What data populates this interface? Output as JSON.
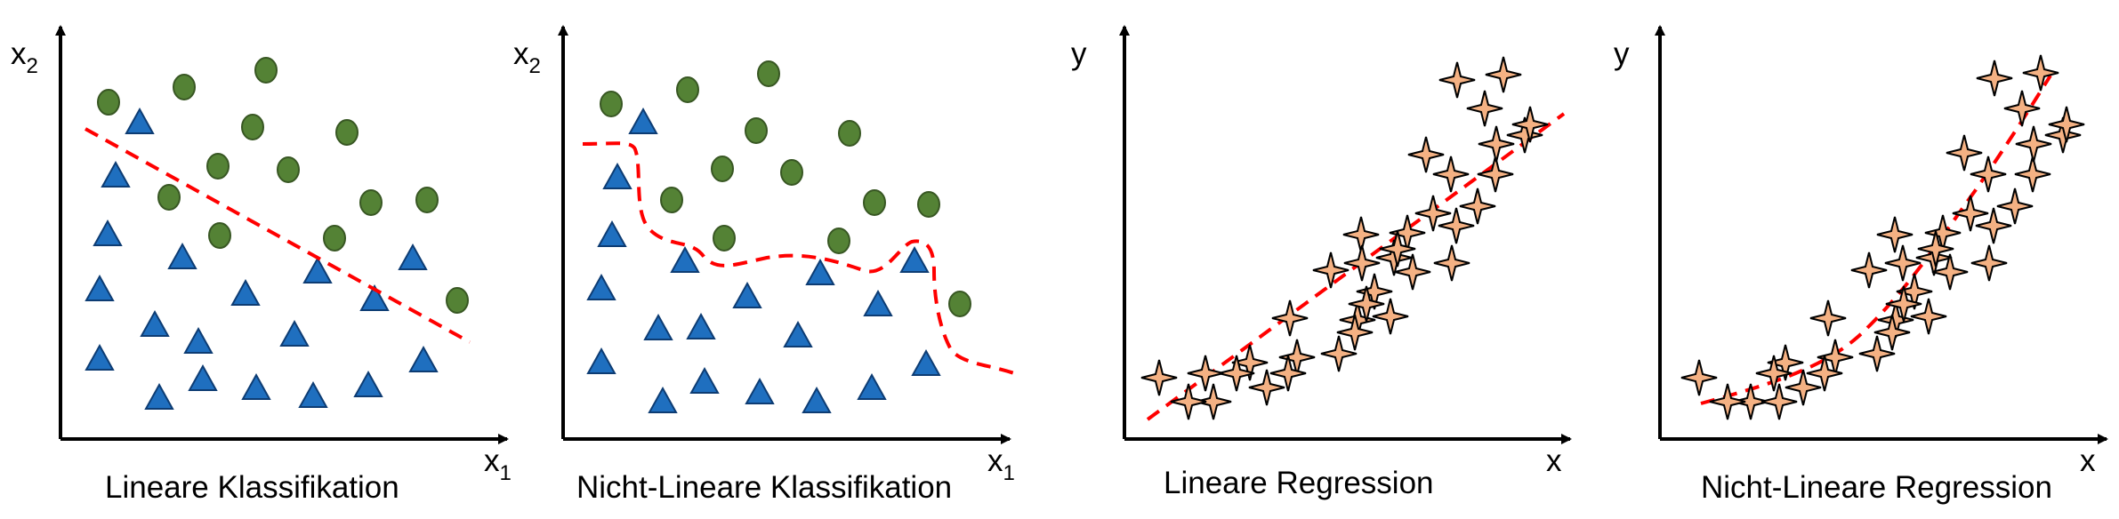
{
  "panels": [
    {
      "caption": "Lineare Klassifikation",
      "x_axis": "x",
      "x_sub": "1",
      "y_axis": "x",
      "y_sub": "2"
    },
    {
      "caption": "Nicht-Lineare Klassifikation",
      "x_axis": "x",
      "x_sub": "1",
      "y_axis": "x",
      "y_sub": "2"
    },
    {
      "caption": "Lineare Regression",
      "x_axis": "x",
      "y_axis": "y"
    },
    {
      "caption": "Nicht-Lineare Regression",
      "x_axis": "x",
      "y_axis": "y"
    }
  ],
  "colors": {
    "class_a": "#548235",
    "class_b": "#1f6fbf",
    "sample_point": "#f4b183",
    "decision_boundary": "#ff0000",
    "axis": "#000000"
  },
  "icons": {
    "class_a": "circle",
    "class_b": "triangle",
    "sample_point": "four-point-star",
    "boundary": "dashed-line"
  }
}
